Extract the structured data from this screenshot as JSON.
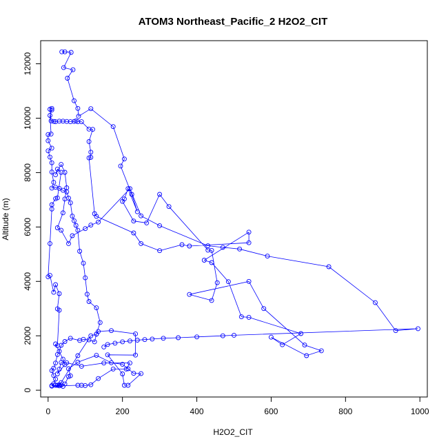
{
  "chart_data": {
    "type": "line",
    "title": "ATOM3 Northeast_Pacific_2 H2O2_CIT",
    "xlabel": "H2O2_CIT",
    "ylabel": "Altitude (m)",
    "xlim": [
      -20,
      1020
    ],
    "ylim": [
      -250,
      12850
    ],
    "x_ticks": [
      0,
      200,
      400,
      600,
      800,
      1000
    ],
    "y_ticks": [
      0,
      2000,
      4000,
      6000,
      8000,
      10000,
      12000
    ],
    "grid": false,
    "legend": "none",
    "colors": {
      "series": "#0000ff",
      "axes": "#000000"
    },
    "series": [
      {
        "marker": "open-circle",
        "points": [
          [
            37,
            12440
          ],
          [
            45,
            12440
          ],
          [
            62,
            12420
          ],
          [
            42,
            11860
          ],
          [
            67,
            11780
          ],
          [
            52,
            11470
          ],
          [
            70,
            10640
          ],
          [
            80,
            10360
          ],
          [
            82,
            10070
          ],
          [
            115,
            10350
          ],
          [
            175,
            9690
          ],
          [
            205,
            8500
          ],
          [
            195,
            8240
          ],
          [
            225,
            7200
          ],
          [
            240,
            6560
          ],
          [
            215,
            7410
          ],
          [
            205,
            7030
          ],
          [
            200,
            6940
          ],
          [
            230,
            6220
          ],
          [
            265,
            6150
          ],
          [
            300,
            7200
          ],
          [
            325,
            6750
          ],
          [
            430,
            5150
          ],
          [
            440,
            5140
          ],
          [
            455,
            3950
          ],
          [
            440,
            3300
          ],
          [
            380,
            3520
          ],
          [
            540,
            4000
          ],
          [
            580,
            3000
          ],
          [
            690,
            1660
          ],
          [
            735,
            1450
          ],
          [
            695,
            1270
          ],
          [
            600,
            1950
          ],
          [
            630,
            1670
          ],
          [
            680,
            2080
          ],
          [
            540,
            2680
          ],
          [
            520,
            2700
          ],
          [
            485,
            3990
          ],
          [
            440,
            4690
          ],
          [
            420,
            4780
          ],
          [
            540,
            5810
          ],
          [
            540,
            5420
          ],
          [
            380,
            5300
          ],
          [
            360,
            5350
          ],
          [
            300,
            5130
          ],
          [
            250,
            5390
          ],
          [
            230,
            5780
          ],
          [
            130,
            6390
          ],
          [
            125,
            6490
          ],
          [
            110,
            8540
          ],
          [
            115,
            8560
          ],
          [
            115,
            8750
          ],
          [
            110,
            9140
          ],
          [
            120,
            9590
          ],
          [
            110,
            9600
          ],
          [
            90,
            9870
          ],
          [
            80,
            9870
          ],
          [
            75,
            9900
          ],
          [
            70,
            9880
          ],
          [
            60,
            9870
          ],
          [
            50,
            9880
          ],
          [
            40,
            9890
          ],
          [
            30,
            9890
          ],
          [
            20,
            9870
          ],
          [
            15,
            9880
          ],
          [
            8,
            9900
          ],
          [
            5,
            10330
          ],
          [
            10,
            10360
          ],
          [
            10,
            10300
          ],
          [
            5,
            10100
          ],
          [
            8,
            9420
          ],
          [
            0,
            9400
          ],
          [
            0,
            9170
          ],
          [
            10,
            8900
          ],
          [
            0,
            8800
          ],
          [
            5,
            8570
          ],
          [
            10,
            8360
          ],
          [
            10,
            8020
          ],
          [
            15,
            7640
          ],
          [
            10,
            7430
          ],
          [
            20,
            7460
          ],
          [
            30,
            7420
          ],
          [
            40,
            7350
          ],
          [
            50,
            7290
          ],
          [
            55,
            7060
          ],
          [
            60,
            6890
          ],
          [
            65,
            6400
          ],
          [
            70,
            6230
          ],
          [
            75,
            6060
          ],
          [
            80,
            5880
          ],
          [
            85,
            5110
          ],
          [
            95,
            4670
          ],
          [
            100,
            4130
          ],
          [
            105,
            3530
          ],
          [
            110,
            3260
          ],
          [
            130,
            3030
          ],
          [
            140,
            2490
          ],
          [
            130,
            2060
          ],
          [
            125,
            1780
          ],
          [
            110,
            1850
          ],
          [
            95,
            1870
          ],
          [
            85,
            1830
          ],
          [
            60,
            1910
          ],
          [
            45,
            1790
          ],
          [
            35,
            1650
          ],
          [
            30,
            1430
          ],
          [
            25,
            1310
          ],
          [
            20,
            1000
          ],
          [
            15,
            810
          ],
          [
            10,
            720
          ],
          [
            15,
            540
          ],
          [
            20,
            410
          ],
          [
            15,
            240
          ],
          [
            10,
            170
          ],
          [
            25,
            180
          ],
          [
            35,
            190
          ],
          [
            45,
            230
          ],
          [
            55,
            500
          ],
          [
            60,
            530
          ],
          [
            55,
            790
          ],
          [
            80,
            1030
          ],
          [
            130,
            1280
          ],
          [
            170,
            1010
          ],
          [
            200,
            950
          ],
          [
            215,
            790
          ],
          [
            230,
            620
          ],
          [
            250,
            610
          ],
          [
            215,
            180
          ],
          [
            205,
            180
          ],
          [
            200,
            600
          ],
          [
            160,
            1300
          ],
          [
            235,
            1290
          ],
          [
            235,
            2070
          ],
          [
            170,
            2190
          ],
          [
            135,
            2160
          ],
          [
            130,
            2060
          ],
          [
            115,
            2000
          ],
          [
            80,
            1270
          ],
          [
            35,
            280
          ],
          [
            30,
            200
          ],
          [
            20,
            180
          ],
          [
            30,
            160
          ],
          [
            40,
            140
          ],
          [
            10,
            150
          ],
          [
            80,
            180
          ],
          [
            90,
            180
          ],
          [
            100,
            170
          ],
          [
            115,
            200
          ],
          [
            135,
            430
          ],
          [
            175,
            780
          ],
          [
            210,
            780
          ],
          [
            220,
            1000
          ],
          [
            150,
            1000
          ],
          [
            90,
            880
          ],
          [
            50,
            1010
          ],
          [
            35,
            1020
          ],
          [
            30,
            770
          ],
          [
            25,
            600
          ],
          [
            45,
            940
          ],
          [
            40,
            1140
          ],
          [
            20,
            1700
          ],
          [
            25,
            1640
          ],
          [
            30,
            2940
          ],
          [
            25,
            2990
          ],
          [
            30,
            3550
          ],
          [
            20,
            3880
          ],
          [
            15,
            3600
          ],
          [
            5,
            4220
          ],
          [
            0,
            4170
          ],
          [
            5,
            5390
          ],
          [
            10,
            6660
          ],
          [
            10,
            6820
          ],
          [
            20,
            7040
          ],
          [
            25,
            7070
          ],
          [
            35,
            8010
          ],
          [
            25,
            8130
          ],
          [
            20,
            7920
          ],
          [
            35,
            8300
          ],
          [
            45,
            8010
          ],
          [
            50,
            7440
          ],
          [
            45,
            7030
          ],
          [
            40,
            6520
          ],
          [
            25,
            5970
          ],
          [
            35,
            5880
          ],
          [
            55,
            5390
          ],
          [
            65,
            5680
          ],
          [
            100,
            5940
          ],
          [
            115,
            6070
          ],
          [
            135,
            6180
          ],
          [
            220,
            7410
          ],
          [
            250,
            6410
          ],
          [
            300,
            6050
          ],
          [
            430,
            5310
          ],
          [
            470,
            5250
          ],
          [
            515,
            5190
          ],
          [
            590,
            4930
          ],
          [
            755,
            4540
          ],
          [
            880,
            3220
          ],
          [
            935,
            2190
          ],
          [
            995,
            2260
          ],
          [
            500,
            2020
          ],
          [
            470,
            2000
          ],
          [
            400,
            1960
          ],
          [
            350,
            1930
          ],
          [
            310,
            1910
          ],
          [
            280,
            1880
          ],
          [
            260,
            1860
          ],
          [
            240,
            1840
          ],
          [
            220,
            1810
          ],
          [
            200,
            1780
          ],
          [
            180,
            1730
          ],
          [
            160,
            1680
          ],
          [
            150,
            1590
          ]
        ]
      }
    ]
  }
}
